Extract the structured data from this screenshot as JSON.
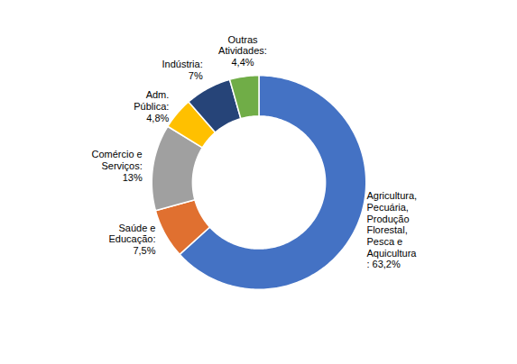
{
  "chart_data": {
    "type": "pie",
    "categories": [
      "Agricultura,\nPecuária,\nProdução\nFlorestal,\nPesca e\nAquicultura\n: 63,2%",
      "Saúde e\nEducação:\n7,5%",
      "Comércio e\nServiços:\n13%",
      "Adm.\nPública:\n4,8%",
      "Indústria:\n7%",
      "Outras\nAtividades:\n4,4%"
    ],
    "values": [
      63.2,
      7.5,
      13.0,
      4.8,
      7.0,
      4.4
    ],
    "colors": [
      "#4472C4",
      "#E07030",
      "#A0A0A0",
      "#FFC000",
      "#264478",
      "#70AD47"
    ]
  }
}
